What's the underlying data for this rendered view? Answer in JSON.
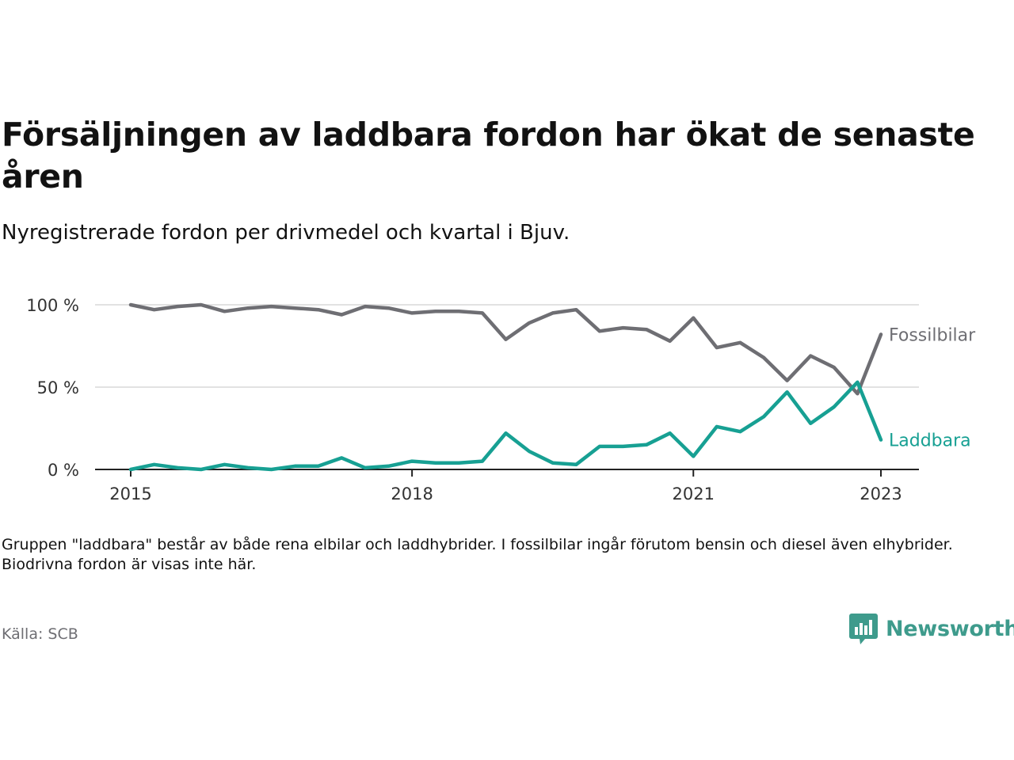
{
  "title": "Försäljningen av laddbara fordon har ökat de senaste åren",
  "subtitle": "Nyregistrerade fordon per drivmedel och kvartal i Bjuv.",
  "note": "Gruppen \"laddbara\" består av både rena elbilar och laddhybrider. I fossilbilar ingår förutom bensin och diesel även elhybrider. Biodrivna fordon är visas inte här.",
  "source": "Källa: SCB",
  "brand": "Newsworthy",
  "chart_data": {
    "type": "line",
    "title": "Försäljningen av laddbara fordon har ökat de senaste åren",
    "subtitle": "Nyregistrerade fordon per drivmedel och kvartal i Bjuv.",
    "xlabel": "",
    "ylabel": "",
    "ylim": [
      0,
      100
    ],
    "y_ticks": [
      0,
      50,
      100
    ],
    "y_tick_labels": [
      "0 %",
      "50 %",
      "100 %"
    ],
    "x_ticks": [
      2015,
      2018,
      2021,
      2023
    ],
    "x_tick_labels": [
      "2015",
      "2018",
      "2021",
      "2023"
    ],
    "grid": "horizontal",
    "legend": "direct labels at line ends",
    "x": [
      "2015Q1",
      "2015Q2",
      "2015Q3",
      "2015Q4",
      "2016Q1",
      "2016Q2",
      "2016Q3",
      "2016Q4",
      "2017Q1",
      "2017Q2",
      "2017Q3",
      "2017Q4",
      "2018Q1",
      "2018Q2",
      "2018Q3",
      "2018Q4",
      "2019Q1",
      "2019Q2",
      "2019Q3",
      "2019Q4",
      "2020Q1",
      "2020Q2",
      "2020Q3",
      "2020Q4",
      "2021Q1",
      "2021Q2",
      "2021Q3",
      "2021Q4",
      "2022Q1",
      "2022Q2",
      "2022Q3",
      "2022Q4",
      "2023Q1"
    ],
    "series": [
      {
        "name": "Fossilbilar",
        "color": "#6e6e73",
        "values": [
          100,
          97,
          99,
          100,
          96,
          98,
          99,
          98,
          97,
          94,
          99,
          98,
          95,
          96,
          96,
          95,
          79,
          89,
          95,
          97,
          84,
          86,
          85,
          78,
          92,
          74,
          77,
          68,
          54,
          69,
          62,
          46,
          82
        ]
      },
      {
        "name": "Laddbara",
        "color": "#17a093",
        "values": [
          0,
          3,
          1,
          0,
          3,
          1,
          0,
          2,
          2,
          7,
          1,
          2,
          5,
          4,
          4,
          5,
          22,
          11,
          4,
          3,
          14,
          14,
          15,
          22,
          8,
          26,
          23,
          32,
          47,
          28,
          38,
          53,
          18
        ]
      }
    ]
  }
}
